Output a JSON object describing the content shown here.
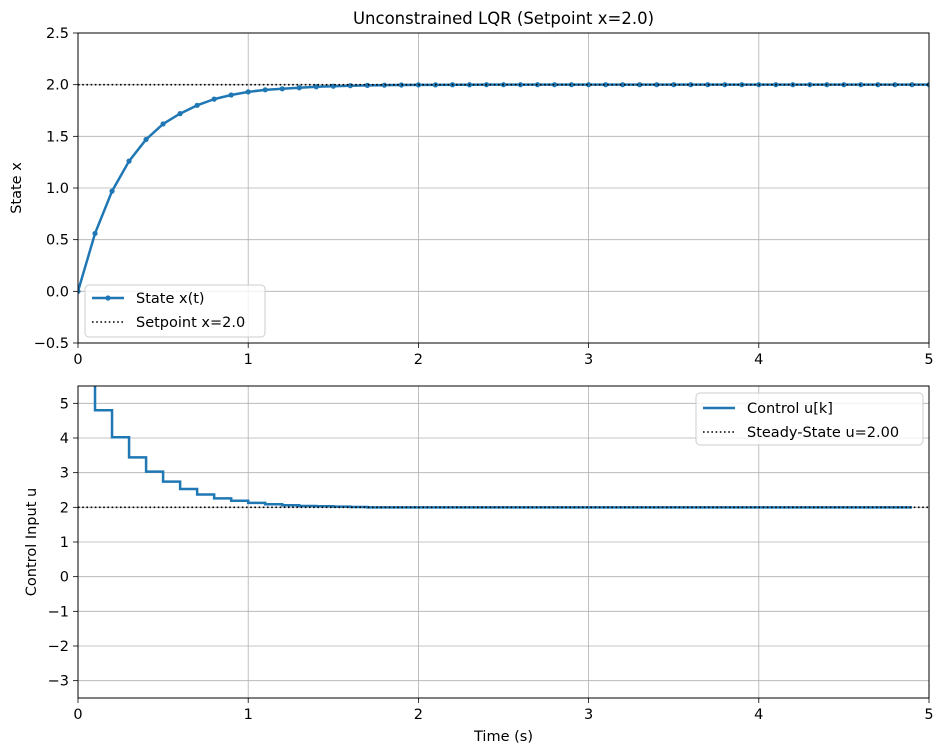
{
  "colors": {
    "series": "#1f77b4",
    "reference": "#000000",
    "grid": "#b0b0b0",
    "axes": "#000000"
  },
  "chart_data": [
    {
      "type": "line",
      "title": "Unconstrained LQR (Setpoint x=2.0)",
      "xlabel": "",
      "ylabel": "State x",
      "xlim": [
        0,
        5
      ],
      "ylim": [
        -0.5,
        2.5
      ],
      "xticks": [
        "0",
        "1",
        "2",
        "3",
        "4",
        "5"
      ],
      "yticks": [
        "−0.5",
        "0.0",
        "0.5",
        "1.0",
        "1.5",
        "2.0",
        "2.5"
      ],
      "grid": true,
      "legend": "lower left",
      "series": [
        {
          "name": "State x(t)",
          "style": "line-with-dots",
          "x": [
            0.0,
            0.1,
            0.2,
            0.3,
            0.4,
            0.5,
            0.6,
            0.7,
            0.8,
            0.9,
            1.0,
            1.1,
            1.2,
            1.3,
            1.4,
            1.5,
            1.6,
            1.7,
            1.8,
            1.9,
            2.0,
            2.1,
            2.2,
            2.3,
            2.4,
            2.5,
            2.6,
            2.7,
            2.8,
            2.9,
            3.0,
            3.1,
            3.2,
            3.3,
            3.4,
            3.5,
            3.6,
            3.7,
            3.8,
            3.9,
            4.0,
            4.1,
            4.2,
            4.3,
            4.4,
            4.5,
            4.6,
            4.7,
            4.8,
            4.9,
            5.0
          ],
          "y": [
            0.0,
            0.56,
            0.97,
            1.26,
            1.47,
            1.62,
            1.72,
            1.8,
            1.86,
            1.9,
            1.93,
            1.95,
            1.96,
            1.97,
            1.98,
            1.985,
            1.99,
            1.993,
            1.995,
            1.997,
            1.998,
            1.998,
            1.999,
            1.999,
            2.0,
            2.0,
            2.0,
            2.0,
            2.0,
            2.0,
            2.0,
            2.0,
            2.0,
            2.0,
            2.0,
            2.0,
            2.0,
            2.0,
            2.0,
            2.0,
            2.0,
            2.0,
            2.0,
            2.0,
            2.0,
            2.0,
            2.0,
            2.0,
            2.0,
            2.0,
            2.0
          ]
        },
        {
          "name": "Setpoint x=2.0",
          "style": "dotted-hline",
          "y": 2.0
        }
      ]
    },
    {
      "type": "line",
      "title": "",
      "xlabel": "Time (s)",
      "ylabel": "Control Input u",
      "xlim": [
        0,
        5
      ],
      "ylim": [
        -3.5,
        5.5
      ],
      "xticks": [
        "0",
        "1",
        "2",
        "3",
        "4",
        "5"
      ],
      "yticks": [
        "−3",
        "−2",
        "−1",
        "0",
        "1",
        "2",
        "3",
        "4",
        "5"
      ],
      "grid": true,
      "legend": "upper right",
      "series": [
        {
          "name": "Control u[k]",
          "style": "step-post",
          "x": [
            0.0,
            0.1,
            0.2,
            0.3,
            0.4,
            0.5,
            0.6,
            0.7,
            0.8,
            0.9,
            1.0,
            1.1,
            1.2,
            1.3,
            1.4,
            1.5,
            1.6,
            1.7,
            1.8,
            1.9,
            2.0,
            2.1,
            2.2,
            2.3,
            2.4,
            2.5,
            2.6,
            2.7,
            2.8,
            2.9,
            3.0,
            3.1,
            3.2,
            3.3,
            3.4,
            3.5,
            3.6,
            3.7,
            3.8,
            3.9,
            4.0,
            4.1,
            4.2,
            4.3,
            4.4,
            4.5,
            4.6,
            4.7,
            4.8,
            4.9
          ],
          "y": [
            5.6,
            4.8,
            4.02,
            3.44,
            3.03,
            2.74,
            2.53,
            2.37,
            2.26,
            2.19,
            2.13,
            2.09,
            2.06,
            2.04,
            2.03,
            2.02,
            2.01,
            2.0,
            2.0,
            2.0,
            2.0,
            2.0,
            2.0,
            2.0,
            2.0,
            2.0,
            2.0,
            2.0,
            2.0,
            2.0,
            2.0,
            2.0,
            2.0,
            2.0,
            2.0,
            2.0,
            2.0,
            2.0,
            2.0,
            2.0,
            2.0,
            2.0,
            2.0,
            2.0,
            2.0,
            2.0,
            2.0,
            2.0,
            2.0,
            2.0
          ]
        },
        {
          "name": "Steady-State u=2.00",
          "style": "dotted-hline",
          "y": 2.0
        }
      ]
    }
  ]
}
